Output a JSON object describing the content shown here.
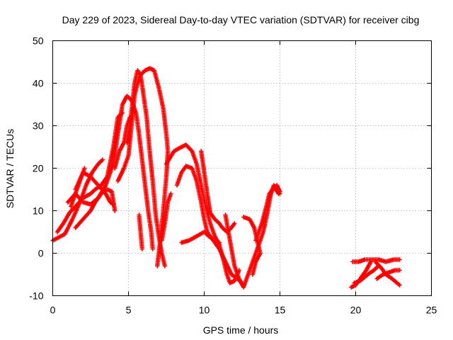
{
  "chart_data": {
    "type": "scatter",
    "title": "Day 229 of 2023, Sidereal Day-to-day VTEC variation (SDTVAR) for receiver cibg",
    "xlabel": "GPS time / hours",
    "ylabel": "SDTVAR / TECUs",
    "xlim": [
      0,
      25
    ],
    "ylim": [
      -10,
      50
    ],
    "xticks": [
      0,
      5,
      10,
      15,
      20,
      25
    ],
    "yticks": [
      -10,
      0,
      10,
      20,
      30,
      40,
      50
    ],
    "xtick_labels": [
      "0",
      "5",
      "10",
      "15",
      "20",
      "25"
    ],
    "ytick_labels": [
      "-10",
      "0",
      "10",
      "20",
      "30",
      "40",
      "50"
    ],
    "grid": true,
    "marker": "plus",
    "color": "#ff0000",
    "tracks": [
      [
        [
          0.0,
          3.0
        ],
        [
          0.8,
          4.5
        ],
        [
          1.3,
          8.0
        ],
        [
          1.8,
          12.0
        ],
        [
          2.2,
          16.0
        ],
        [
          2.6,
          19.0
        ],
        [
          3.0,
          21.0
        ],
        [
          3.3,
          22.0
        ]
      ],
      [
        [
          1.5,
          15.0
        ],
        [
          2.0,
          19.0
        ],
        [
          2.5,
          18.0
        ],
        [
          3.0,
          16.0
        ],
        [
          3.5,
          14.0
        ],
        [
          3.8,
          12.0
        ],
        [
          4.0,
          11.5
        ]
      ],
      [
        [
          1.2,
          11.0
        ],
        [
          1.8,
          17.0
        ],
        [
          2.1,
          20.0
        ]
      ],
      [
        [
          0.3,
          5.0
        ],
        [
          0.7,
          7.0
        ],
        [
          1.1,
          9.5
        ],
        [
          1.5,
          11.0
        ],
        [
          2.0,
          13.0
        ],
        [
          2.5,
          14.0
        ],
        [
          2.8,
          15.0
        ],
        [
          3.2,
          16.0
        ],
        [
          3.6,
          18.0
        ],
        [
          4.0,
          25.0
        ],
        [
          4.3,
          32.0
        ],
        [
          4.6,
          33.0
        ]
      ],
      [
        [
          1.5,
          6.0
        ],
        [
          2.0,
          8.0
        ],
        [
          2.5,
          10.0
        ],
        [
          2.8,
          12.0
        ],
        [
          3.2,
          14.0
        ],
        [
          3.6,
          15.0
        ],
        [
          3.9,
          14.5
        ],
        [
          4.1,
          10.0
        ]
      ],
      [
        [
          1.0,
          12.0
        ],
        [
          1.5,
          14.0
        ],
        [
          2.0,
          12.0
        ],
        [
          2.5,
          11.5
        ],
        [
          3.0,
          13.0
        ],
        [
          3.5,
          16.0
        ],
        [
          4.0,
          21.0
        ],
        [
          4.3,
          28.0
        ],
        [
          4.6,
          35.0
        ],
        [
          4.9,
          37.0
        ],
        [
          5.2,
          36.0
        ],
        [
          5.5,
          33.0
        ],
        [
          5.7,
          28.0
        ],
        [
          5.9,
          22.0
        ],
        [
          6.1,
          16.0
        ],
        [
          6.3,
          10.0
        ],
        [
          6.5,
          5.0
        ],
        [
          6.6,
          1.0
        ]
      ],
      [
        [
          4.1,
          20.0
        ],
        [
          4.4,
          24.0
        ],
        [
          4.7,
          26.0
        ],
        [
          4.9,
          30.0
        ],
        [
          5.1,
          32.0
        ]
      ],
      [
        [
          4.3,
          17.0
        ],
        [
          4.7,
          20.0
        ],
        [
          5.0,
          23.0
        ],
        [
          5.2,
          30.0
        ],
        [
          5.4,
          37.0
        ],
        [
          5.6,
          40.0
        ],
        [
          5.8,
          42.0
        ],
        [
          6.1,
          43.0
        ],
        [
          6.4,
          43.5
        ],
        [
          6.7,
          43.0
        ],
        [
          7.0,
          39.0
        ],
        [
          7.3,
          34.0
        ],
        [
          7.5,
          28.0
        ],
        [
          7.6,
          24.0
        ],
        [
          7.5,
          18.0
        ],
        [
          7.3,
          10.0
        ],
        [
          7.1,
          3.0
        ],
        [
          6.9,
          -3.0
        ]
      ],
      [
        [
          4.9,
          26.0
        ],
        [
          5.1,
          30.0
        ],
        [
          5.4,
          40.0
        ],
        [
          5.6,
          43.0
        ],
        [
          5.8,
          42.0
        ],
        [
          6.0,
          37.0
        ],
        [
          6.2,
          32.0
        ],
        [
          6.4,
          24.0
        ],
        [
          6.6,
          17.0
        ],
        [
          6.8,
          9.0
        ],
        [
          7.0,
          4.0
        ],
        [
          7.2,
          0.0
        ],
        [
          7.4,
          -3.0
        ]
      ],
      [
        [
          7.2,
          3.0
        ],
        [
          7.4,
          7.0
        ],
        [
          7.6,
          12.0
        ],
        [
          7.8,
          14.0
        ]
      ],
      [
        [
          5.7,
          9.0
        ],
        [
          5.8,
          5.0
        ],
        [
          5.9,
          1.0
        ]
      ],
      [
        [
          7.5,
          21.0
        ],
        [
          8.0,
          24.0
        ],
        [
          8.5,
          25.0
        ],
        [
          8.8,
          25.5
        ],
        [
          9.2,
          24.0
        ],
        [
          9.5,
          21.0
        ],
        [
          9.8,
          16.0
        ],
        [
          10.1,
          11.0
        ],
        [
          10.4,
          7.0
        ],
        [
          10.7,
          4.0
        ],
        [
          11.0,
          2.0
        ],
        [
          11.3,
          -2.0
        ],
        [
          11.5,
          -5.0
        ],
        [
          11.7,
          -7.0
        ],
        [
          12.0,
          -6.5
        ],
        [
          12.3,
          -4.0
        ]
      ],
      [
        [
          8.2,
          16.0
        ],
        [
          8.5,
          19.0
        ],
        [
          8.8,
          20.5
        ],
        [
          9.2,
          20.0
        ],
        [
          9.5,
          17.0
        ],
        [
          9.8,
          12.0
        ],
        [
          10.0,
          8.0
        ],
        [
          10.2,
          5.0
        ],
        [
          10.6,
          3.0
        ],
        [
          11.0,
          1.0
        ],
        [
          11.4,
          -2.0
        ],
        [
          11.8,
          -5.0
        ],
        [
          12.2,
          -6.0
        ],
        [
          12.6,
          -7.5
        ]
      ],
      [
        [
          8.5,
          2.5
        ],
        [
          9.0,
          3.0
        ],
        [
          9.5,
          4.0
        ],
        [
          10.0,
          5.0
        ],
        [
          10.3,
          4.0
        ],
        [
          10.7,
          3.0
        ],
        [
          11.0,
          2.5
        ]
      ],
      [
        [
          9.8,
          24.0
        ],
        [
          10.0,
          19.0
        ],
        [
          10.2,
          14.0
        ],
        [
          10.4,
          9.5
        ],
        [
          10.7,
          8.0
        ],
        [
          11.0,
          7.0
        ],
        [
          11.2,
          6.0
        ],
        [
          11.5,
          5.0
        ],
        [
          11.8,
          6.0
        ],
        [
          12.0,
          7.0
        ]
      ],
      [
        [
          11.4,
          9.0
        ],
        [
          11.6,
          5.0
        ],
        [
          11.8,
          1.0
        ],
        [
          12.0,
          -3.0
        ],
        [
          12.3,
          -6.0
        ],
        [
          12.6,
          -8.0
        ],
        [
          12.9,
          -5.0
        ],
        [
          13.2,
          -2.0
        ],
        [
          13.6,
          2.0
        ],
        [
          13.9,
          5.0
        ],
        [
          14.2,
          10.0
        ],
        [
          14.4,
          14.0
        ],
        [
          14.6,
          16.0
        ],
        [
          14.9,
          14.0
        ]
      ],
      [
        [
          12.6,
          8.5
        ],
        [
          13.0,
          8.0
        ],
        [
          13.3,
          6.0
        ],
        [
          13.5,
          3.0
        ],
        [
          13.7,
          0.0
        ],
        [
          13.4,
          -2.0
        ],
        [
          13.2,
          -5.0
        ]
      ],
      [
        [
          13.4,
          3.0
        ],
        [
          13.8,
          7.0
        ],
        [
          14.1,
          11.0
        ],
        [
          14.3,
          14.0
        ],
        [
          14.6,
          15.5
        ],
        [
          15.0,
          14.0
        ]
      ],
      [
        [
          14.3,
          13.0
        ],
        [
          14.5,
          15.0
        ],
        [
          14.8,
          16.0
        ],
        [
          15.0,
          14.5
        ]
      ],
      [
        [
          19.8,
          -2.0
        ],
        [
          20.2,
          -2.0
        ],
        [
          20.6,
          -1.5
        ],
        [
          21.0,
          -1.5
        ],
        [
          21.5,
          -1.5
        ],
        [
          22.0,
          -2.0
        ],
        [
          22.5,
          -1.5
        ],
        [
          22.9,
          -1.5
        ]
      ],
      [
        [
          19.7,
          -8.0
        ],
        [
          20.0,
          -7.5
        ],
        [
          20.3,
          -6.0
        ],
        [
          20.7,
          -4.0
        ],
        [
          21.0,
          -2.0
        ]
      ],
      [
        [
          19.9,
          -7.0
        ],
        [
          20.3,
          -6.5
        ],
        [
          20.8,
          -5.0
        ],
        [
          21.2,
          -4.0
        ],
        [
          21.5,
          -3.0
        ]
      ],
      [
        [
          21.3,
          -2.0
        ],
        [
          21.7,
          -3.5
        ],
        [
          22.0,
          -5.0
        ],
        [
          22.4,
          -6.0
        ],
        [
          22.9,
          -7.5
        ]
      ],
      [
        [
          21.4,
          -6.0
        ],
        [
          21.8,
          -5.0
        ],
        [
          22.2,
          -4.5
        ],
        [
          22.6,
          -4.0
        ],
        [
          22.9,
          -4.0
        ]
      ]
    ]
  }
}
